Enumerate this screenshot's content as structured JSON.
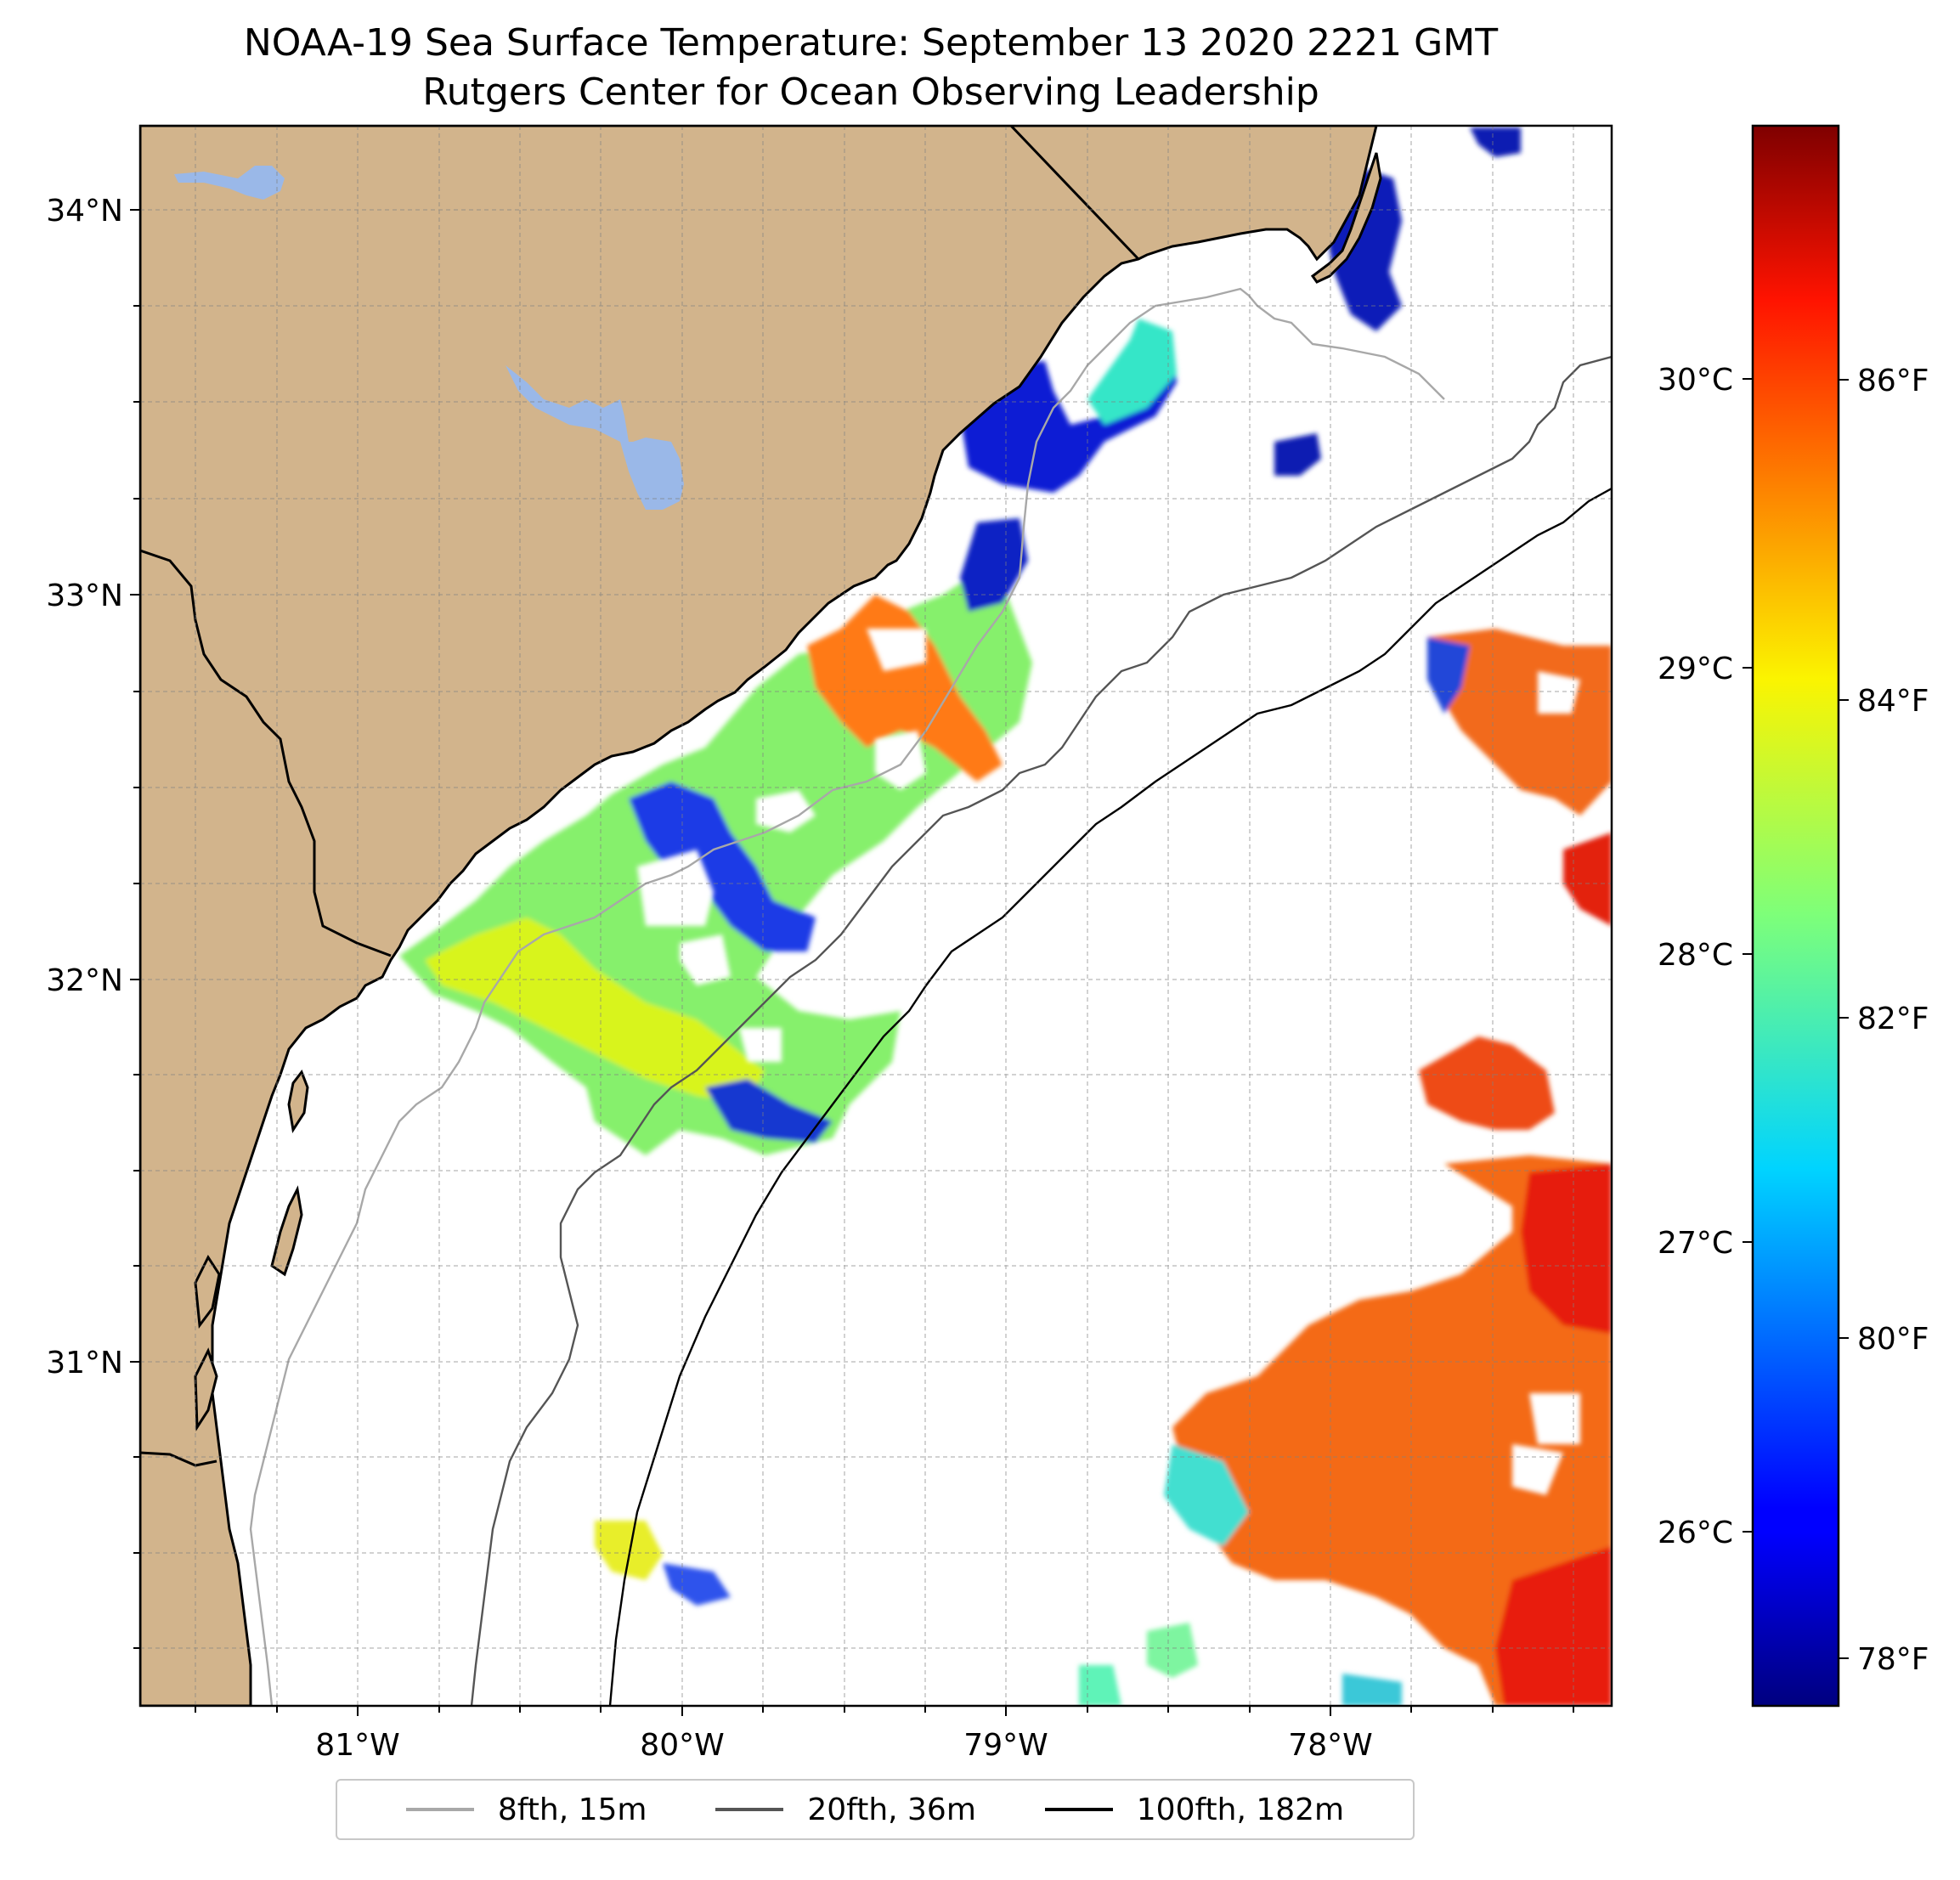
{
  "title": {
    "line1": "NOAA-19 Sea Surface Temperature: September 13 2020 2221 GMT",
    "line2": "Rutgers Center for Ocean Observing Leadership"
  },
  "map": {
    "projection": "mercator",
    "lon_range": [
      -81.67,
      -77.15
    ],
    "lat_range": [
      30.25,
      34.22
    ],
    "land_color": "#d2b48c",
    "lake_color": "#9ab8e8",
    "grid": "dashed",
    "lat_ticks": [
      "34°N",
      "33°N",
      "32°N",
      "31°N"
    ],
    "lon_ticks": [
      "81°W",
      "80°W",
      "79°W",
      "78°W"
    ]
  },
  "colorbar": {
    "colormap": "jet",
    "celsius_range": [
      25.39,
      31.0
    ],
    "celsius_ticks": [
      "26°C",
      "27°C",
      "28°C",
      "29°C",
      "30°C"
    ],
    "fahrenheit_ticks": [
      "78°F",
      "80°F",
      "82°F",
      "84°F",
      "86°F"
    ]
  },
  "legend": {
    "items": [
      {
        "label": "8fth, 15m",
        "color": "#a8a8a8"
      },
      {
        "label": "20fth, 36m",
        "color": "#555555"
      },
      {
        "label": "100fth, 182m",
        "color": "#000000"
      }
    ]
  }
}
